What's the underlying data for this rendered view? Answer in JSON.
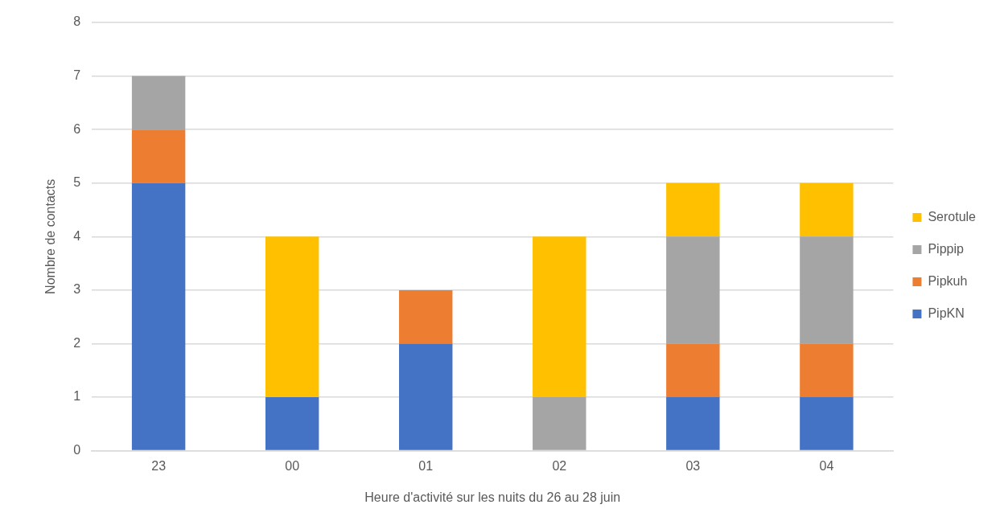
{
  "chart_data": {
    "type": "bar",
    "stacked": true,
    "xlabel": "Heure d'activité sur les nuits du 26 au 28 juin",
    "ylabel": "Nombre de contacts",
    "categories": [
      "23",
      "00",
      "01",
      "02",
      "03",
      "04"
    ],
    "series": [
      {
        "name": "PipKN",
        "color": "#4472c4",
        "values": [
          5,
          1,
          2,
          0,
          1,
          1
        ]
      },
      {
        "name": "Pipkuh",
        "color": "#ed7d31",
        "values": [
          1,
          0,
          1,
          0,
          1,
          1
        ]
      },
      {
        "name": "Pippip",
        "color": "#a5a5a5",
        "values": [
          1,
          0,
          0,
          1,
          2,
          2
        ]
      },
      {
        "name": "Serotule",
        "color": "#ffc000",
        "values": [
          0,
          3,
          0,
          3,
          1,
          1
        ]
      }
    ],
    "ylim": [
      0,
      8
    ],
    "yticks": [
      0,
      1,
      2,
      3,
      4,
      5,
      6,
      7,
      8
    ],
    "grid": "y",
    "legend": "right"
  }
}
